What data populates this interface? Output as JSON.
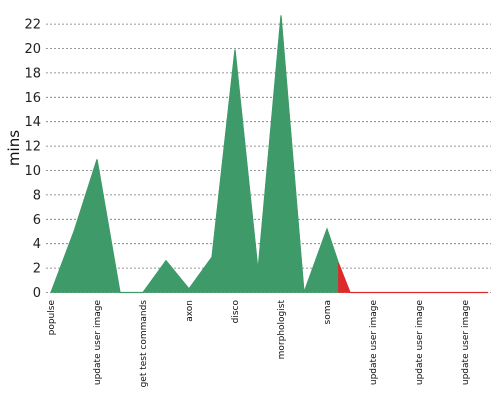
{
  "chart_data": {
    "type": "area",
    "title": "",
    "xlabel": "",
    "ylabel": "mins",
    "ylim": [
      0,
      24
    ],
    "yticks": [
      0,
      2,
      4,
      6,
      8,
      10,
      12,
      14,
      16,
      18,
      20,
      22
    ],
    "grid": true,
    "legend": "none",
    "categories": [
      "populse",
      "update user image",
      "get test commands",
      "axon",
      "disco",
      "morphologist",
      "soma",
      "update user image",
      "update user image",
      "update user image"
    ],
    "series": [
      {
        "status": "success",
        "color": "#3f9a6a",
        "points": [
          {
            "x": 0.0,
            "y": 0.0
          },
          {
            "x": 0.5,
            "y": 5.0
          },
          {
            "x": 1.0,
            "y": 10.9
          },
          {
            "x": 1.5,
            "y": 0.0
          },
          {
            "x": 2.0,
            "y": 0.0
          },
          {
            "x": 2.5,
            "y": 2.6
          },
          {
            "x": 3.0,
            "y": 0.3
          },
          {
            "x": 3.5,
            "y": 2.9
          },
          {
            "x": 4.0,
            "y": 19.9
          },
          {
            "x": 4.5,
            "y": 1.8
          },
          {
            "x": 5.0,
            "y": 22.7
          },
          {
            "x": 5.5,
            "y": 0.0
          },
          {
            "x": 6.0,
            "y": 5.2
          },
          {
            "x": 6.25,
            "y": 2.4
          }
        ]
      },
      {
        "status": "failure",
        "color": "#dd2b2b",
        "points": [
          {
            "x": 6.25,
            "y": 2.4
          },
          {
            "x": 6.5,
            "y": 0.0
          },
          {
            "x": 7.0,
            "y": 0.0
          },
          {
            "x": 7.5,
            "y": 0.0
          },
          {
            "x": 8.0,
            "y": 0.0
          },
          {
            "x": 8.5,
            "y": 0.0
          },
          {
            "x": 9.0,
            "y": 0.0
          },
          {
            "x": 9.5,
            "y": 0.0
          }
        ]
      }
    ]
  }
}
